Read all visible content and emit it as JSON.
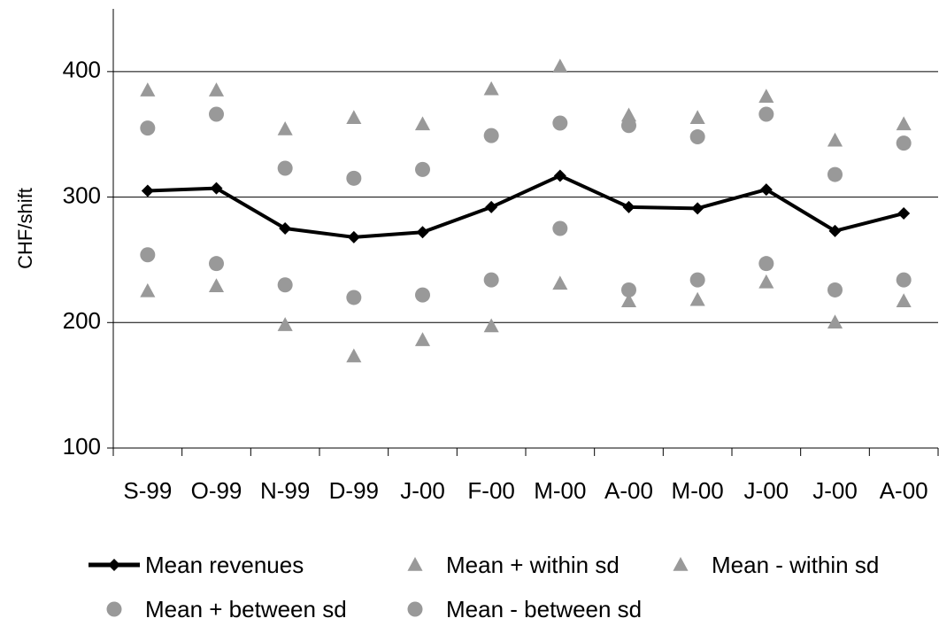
{
  "chart_data": {
    "type": "line",
    "y_label": "CHF/shift",
    "categories": [
      "S-99",
      "O-99",
      "N-99",
      "D-99",
      "J-00",
      "F-00",
      "M-00",
      "A-00",
      "M-00",
      "J-00",
      "J-00",
      "A-00"
    ],
    "series": [
      {
        "name": "Mean revenues",
        "color": "#000000",
        "marker": "diamond",
        "line": true,
        "values": [
          305,
          307,
          275,
          268,
          272,
          292,
          317,
          292,
          291,
          306,
          273,
          287
        ]
      },
      {
        "name": "Mean + within sd",
        "color": "#999999",
        "marker": "triangle",
        "line": false,
        "values": [
          385,
          385,
          354,
          363,
          358,
          386,
          404,
          365,
          363,
          380,
          345,
          358
        ]
      },
      {
        "name": "Mean - within sd",
        "color": "#999999",
        "marker": "triangle",
        "line": false,
        "values": [
          225,
          229,
          198,
          173,
          186,
          197,
          231,
          217,
          218,
          232,
          200,
          217
        ]
      },
      {
        "name": "Mean + between sd",
        "color": "#999999",
        "marker": "circle",
        "line": false,
        "values": [
          355,
          366,
          323,
          315,
          322,
          349,
          359,
          357,
          348,
          366,
          318,
          343
        ]
      },
      {
        "name": "Mean - between sd",
        "color": "#999999",
        "marker": "circle",
        "line": false,
        "values": [
          254,
          247,
          230,
          220,
          222,
          234,
          275,
          226,
          234,
          247,
          226,
          234
        ]
      }
    ],
    "ylim": [
      100,
      450
    ],
    "yticks": [
      100,
      200,
      300,
      400
    ],
    "grid": true
  }
}
